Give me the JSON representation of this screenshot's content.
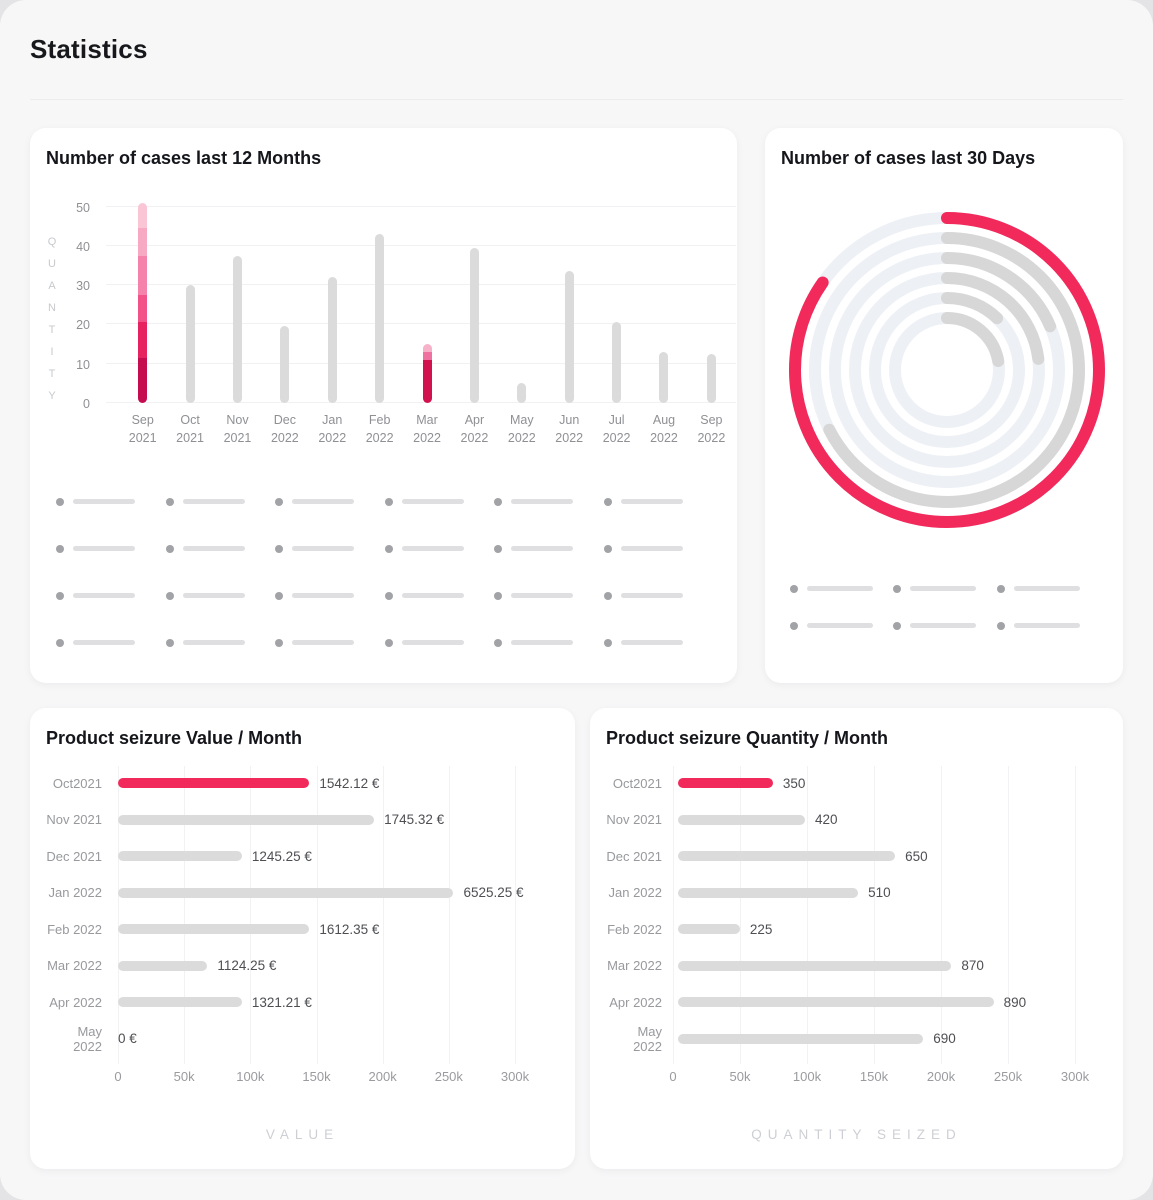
{
  "header": {
    "title": "Statistics"
  },
  "colors": {
    "accent": "#F2295B",
    "bar_gray": "#DBDBDB",
    "ring_gray": "#D7D7D7",
    "ring_track": "#EDF0F5",
    "card_bg": "#FFFFFF",
    "page_bg": "#F7F7F8"
  },
  "cards": {
    "cases12": {
      "title": "Number of cases last 12 Months",
      "y_axis_label": "QUANTITY",
      "y_ticks": [
        0,
        10,
        20,
        30,
        40,
        50
      ],
      "bars": [
        {
          "month": "Sep",
          "year": "2021",
          "value": 51,
          "segments": [
            {
              "v": 11.5,
              "c": "#C50C50"
            },
            {
              "v": 9,
              "c": "#E72261"
            },
            {
              "v": 7,
              "c": "#F15389"
            },
            {
              "v": 10,
              "c": "#F482AA"
            },
            {
              "v": 7,
              "c": "#F7A9C3"
            },
            {
              "v": 6.5,
              "c": "#FAC6D6"
            }
          ]
        },
        {
          "month": "Oct",
          "year": "2021",
          "value": 30
        },
        {
          "month": "Nov",
          "year": "2021",
          "value": 37.5
        },
        {
          "month": "Dec",
          "year": "2022",
          "value": 19.5
        },
        {
          "month": "Jan",
          "year": "2022",
          "value": 32
        },
        {
          "month": "Feb",
          "year": "2022",
          "value": 43
        },
        {
          "month": "Mar",
          "year": "2022",
          "value": 15,
          "segments": [
            {
              "v": 11,
              "c": "#D2124F"
            },
            {
              "v": 2,
              "c": "#EF71A0"
            },
            {
              "v": 2,
              "c": "#F7B2CA"
            }
          ]
        },
        {
          "month": "Apr",
          "year": "2022",
          "value": 39.5
        },
        {
          "month": "May",
          "year": "2022",
          "value": 5
        },
        {
          "month": "Jun",
          "year": "2022",
          "value": 33.5
        },
        {
          "month": "Jul",
          "year": "2022",
          "value": 20.5
        },
        {
          "month": "Aug",
          "year": "2022",
          "value": 13
        },
        {
          "month": "Sep",
          "year": "2022",
          "value": 12.5
        }
      ],
      "legend_skeleton": {
        "rows": 4,
        "cols": 6
      }
    },
    "cases30": {
      "title": "Number of cases last 30 Days",
      "rings": [
        {
          "sweep": 305,
          "color": "#F2295B"
        },
        {
          "sweep": 243,
          "color": "#D7D7D7"
        },
        {
          "sweep": 67,
          "color": "#D7D7D7"
        },
        {
          "sweep": 83,
          "color": "#D7D7D7"
        },
        {
          "sweep": 44,
          "color": "#D7D7D7"
        },
        {
          "sweep": 80,
          "color": "#D7D7D7"
        }
      ],
      "legend_skeleton": {
        "rows": 2,
        "cols": 3
      }
    },
    "value": {
      "title": "Product seizure Value / Month",
      "axis_label": "VALUE",
      "x_ticks": [
        "0",
        "50k",
        "100k",
        "150k",
        "200k",
        "250k",
        "300k"
      ],
      "rows": [
        {
          "label": "Oct2021",
          "value": "1542.12 €",
          "pct": 48.2,
          "accent": true
        },
        {
          "label": "Nov 2021",
          "value": "1745.32 €",
          "pct": 64.5
        },
        {
          "label": "Dec 2021",
          "value": "1245.25 €",
          "pct": 31.2
        },
        {
          "label": "Jan 2022",
          "value": "6525.25 €",
          "pct": 84.5
        },
        {
          "label": "Feb 2022",
          "value": "1612.35 €",
          "pct": 48.2
        },
        {
          "label": "Mar 2022",
          "value": "1124.25 €",
          "pct": 22.5
        },
        {
          "label": "Apr 2022",
          "value": "1321.21 €",
          "pct": 31.2
        },
        {
          "label": "May 2022",
          "value": "0 €",
          "pct": 0
        }
      ]
    },
    "quantity": {
      "title": "Product seizure Quantity / Month",
      "axis_label": "QUANTITY SEIZED",
      "x_ticks": [
        "0",
        "50k",
        "100k",
        "150k",
        "200k",
        "250k",
        "300k"
      ],
      "rows": [
        {
          "label": "Oct2021",
          "value": "350",
          "pct": 23.6,
          "accent": true
        },
        {
          "label": "Nov 2021",
          "value": "420",
          "pct": 31.6
        },
        {
          "label": "Dec 2021",
          "value": "650",
          "pct": 54
        },
        {
          "label": "Jan 2022",
          "value": "510",
          "pct": 44.8
        },
        {
          "label": "Feb 2022",
          "value": "225",
          "pct": 15.4
        },
        {
          "label": "Mar 2022",
          "value": "870",
          "pct": 68
        },
        {
          "label": "Apr 2022",
          "value": "890",
          "pct": 78.5
        },
        {
          "label": "May 2022",
          "value": "690",
          "pct": 61
        }
      ]
    }
  },
  "chart_data": [
    {
      "type": "bar",
      "title": "Number of cases last 12 Months",
      "ylabel": "QUANTITY",
      "categories": [
        "Sep 2021",
        "Oct 2021",
        "Nov 2021",
        "Dec 2022",
        "Jan 2022",
        "Feb 2022",
        "Mar 2022",
        "Apr 2022",
        "May 2022",
        "Jun 2022",
        "Jul 2022",
        "Aug 2022",
        "Sep 2022"
      ],
      "values": [
        51,
        30,
        37.5,
        19.5,
        32,
        43,
        15,
        39.5,
        5,
        33.5,
        20.5,
        13,
        12.5
      ],
      "ylim": [
        0,
        50
      ],
      "y_ticks": [
        0,
        10,
        20,
        30,
        40,
        50
      ],
      "grid": true,
      "highlighted_bars": [
        "Sep 2021",
        "Mar 2022"
      ],
      "note": "Sep 2021 and Mar 2022 bars are stacked pink-gradient segments (dark crimson at bottom to light pink at top); all other bars are gray"
    },
    {
      "type": "radial",
      "title": "Number of cases last 30 Days",
      "rings_sweep_degrees": [
        305,
        243,
        67,
        83,
        44,
        80
      ],
      "ring_colors": [
        "#F2295B",
        "#D7D7D7",
        "#D7D7D7",
        "#D7D7D7",
        "#D7D7D7",
        "#D7D7D7"
      ],
      "note": "six concentric progress rings starting at 12 o'clock going clockwise over light full-circle tracks; outermost ring pink"
    },
    {
      "type": "bar",
      "orientation": "horizontal",
      "title": "Product seizure Value / Month",
      "categories": [
        "Oct2021",
        "Nov 2021",
        "Dec 2021",
        "Jan 2022",
        "Feb 2022",
        "Mar 2022",
        "Apr 2022",
        "May 2022"
      ],
      "values": [
        1542.12,
        1745.32,
        1245.25,
        6525.25,
        1612.35,
        1124.25,
        1321.21,
        0
      ],
      "data_labels": [
        "1542.12 €",
        "1745.32 €",
        "1245.25 €",
        "6525.25 €",
        "1612.35 €",
        "1124.25 €",
        "1321.21 €",
        "0 €"
      ],
      "xlabel": "VALUE",
      "x_ticks": [
        "0",
        "50k",
        "100k",
        "150k",
        "200k",
        "250k",
        "300k"
      ],
      "highlighted_bars": [
        "Oct2021"
      ]
    },
    {
      "type": "bar",
      "orientation": "horizontal",
      "title": "Product seizure Quantity / Month",
      "categories": [
        "Oct2021",
        "Nov 2021",
        "Dec 2021",
        "Jan 2022",
        "Feb 2022",
        "Mar 2022",
        "Apr 2022",
        "May 2022"
      ],
      "values": [
        350,
        420,
        650,
        510,
        225,
        870,
        890,
        690
      ],
      "data_labels": [
        "350",
        "420",
        "650",
        "510",
        "225",
        "870",
        "890",
        "690"
      ],
      "xlabel": "QUANTITY SEIZED",
      "x_ticks": [
        "0",
        "50k",
        "100k",
        "150k",
        "200k",
        "250k",
        "300k"
      ],
      "highlighted_bars": [
        "Oct2021"
      ]
    }
  ]
}
